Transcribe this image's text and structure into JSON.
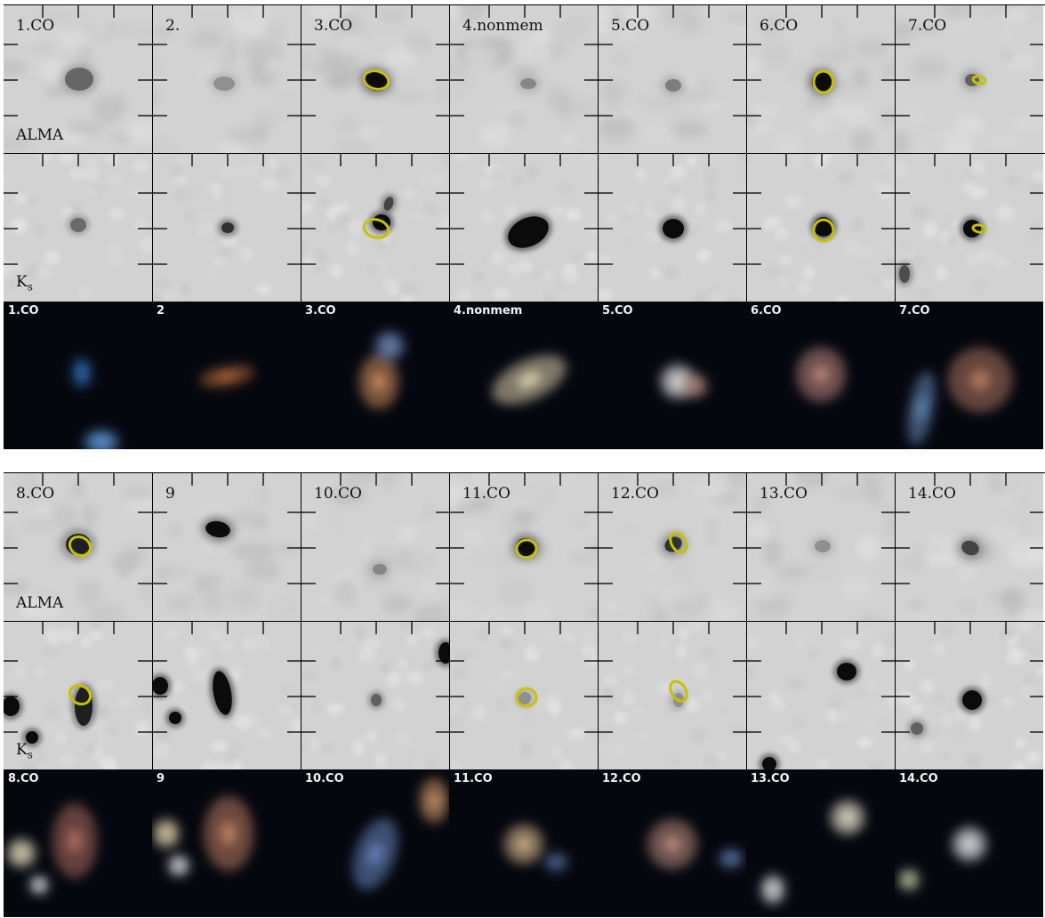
{
  "blocks": [
    {
      "band_labels": {
        "alma": "ALMA",
        "ks_main": "K",
        "ks_sub": "s"
      },
      "gray_labels": [
        "1.CO",
        "2.",
        "3.CO",
        "4.nonmem",
        "5.CO",
        "6.CO",
        "7.CO"
      ],
      "rgb_labels": [
        "1.CO",
        "2",
        "3.CO",
        "4.nonmem",
        "5.CO",
        "6.CO",
        "7.CO"
      ]
    },
    {
      "band_labels": {
        "alma": "ALMA",
        "ks_main": "K",
        "ks_sub": "s"
      },
      "gray_labels": [
        "8.CO",
        "9",
        "10.CO",
        "11.CO",
        "12.CO",
        "13.CO",
        "14.CO"
      ],
      "rgb_labels": [
        "8.CO",
        "9",
        "10.CO",
        "11.CO",
        "12.CO",
        "13.CO",
        "14.CO"
      ]
    }
  ],
  "colors": {
    "contour": "#c8c200",
    "gray_background": "#d2d2d2",
    "rgb_background": "#05070f"
  }
}
